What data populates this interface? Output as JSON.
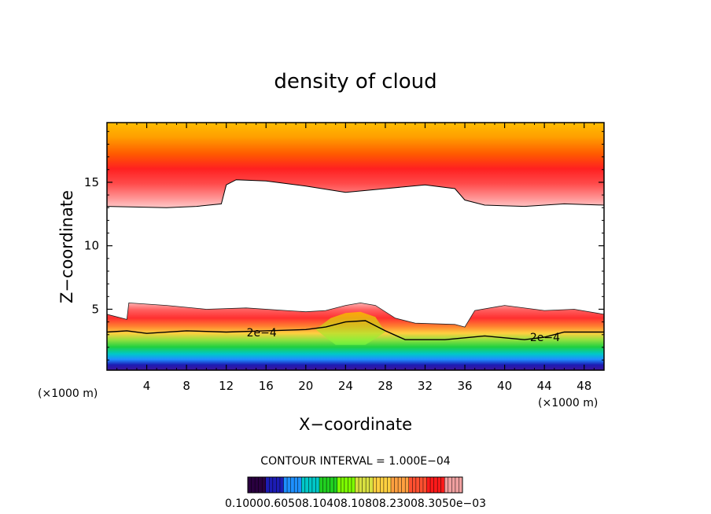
{
  "chart_data": {
    "type": "contour",
    "title": "density of cloud",
    "xlabel": "X−coordinate",
    "ylabel": "Z−coordinate",
    "x_unit_left": "(×1000 m)",
    "x_unit_right": "(×1000 m)",
    "xlim": [
      0,
      50
    ],
    "ylim": [
      0.2,
      19.7
    ],
    "x_ticks": [
      4,
      8,
      12,
      16,
      20,
      24,
      28,
      32,
      36,
      40,
      44,
      48
    ],
    "x_tick_labels": [
      "4",
      "8",
      "12",
      "16",
      "20",
      "24",
      "28",
      "32",
      "36",
      "40",
      "44",
      "48"
    ],
    "y_ticks": [
      5,
      10,
      15
    ],
    "y_tick_labels": [
      "5",
      "10",
      "15"
    ],
    "contour_interval_text": "CONTOUR INTERVAL = 1.000E−04",
    "contour_labels": [
      {
        "text": "2e−4",
        "x": 15.0,
        "z": 3.0
      },
      {
        "text": "2e−4",
        "x": 43.5,
        "z": 2.6
      }
    ],
    "colorbar_labels_text": "0.10000.60508.10408.10808.23008.3050e−03",
    "colorbar_colors": [
      "#2a0040",
      "#1c1cb4",
      "#1e90ff",
      "#00c8c8",
      "#20d020",
      "#7cfc00",
      "#d8e040",
      "#ffd040",
      "#ffa040",
      "#ff5030",
      "#ff1a1a",
      "#f0a0a0"
    ],
    "upper_cloud": {
      "base_profile": [
        [
          0,
          13.1
        ],
        [
          6,
          13.0
        ],
        [
          9,
          13.1
        ],
        [
          11.5,
          13.3
        ],
        [
          12,
          14.8
        ],
        [
          13,
          15.2
        ],
        [
          16,
          15.1
        ],
        [
          20,
          14.7
        ],
        [
          24,
          14.2
        ],
        [
          28,
          14.5
        ],
        [
          32,
          14.8
        ],
        [
          35,
          14.5
        ],
        [
          36,
          13.6
        ],
        [
          38,
          13.2
        ],
        [
          42,
          13.1
        ],
        [
          46,
          13.3
        ],
        [
          50,
          13.2
        ]
      ],
      "top": 19.7
    },
    "lower_cloud": {
      "top_profile": [
        [
          0,
          4.6
        ],
        [
          2,
          4.2
        ],
        [
          2.2,
          5.5
        ],
        [
          6,
          5.3
        ],
        [
          10,
          5.0
        ],
        [
          14,
          5.1
        ],
        [
          18,
          4.9
        ],
        [
          20,
          4.8
        ],
        [
          22,
          4.9
        ],
        [
          24,
          5.3
        ],
        [
          25.5,
          5.5
        ],
        [
          27,
          5.3
        ],
        [
          29,
          4.3
        ],
        [
          31,
          3.9
        ],
        [
          35,
          3.8
        ],
        [
          36,
          3.6
        ],
        [
          37,
          4.9
        ],
        [
          40,
          5.3
        ],
        [
          44,
          4.9
        ],
        [
          47,
          5.0
        ],
        [
          50,
          4.6
        ]
      ],
      "contour_2e4": [
        [
          0,
          3.2
        ],
        [
          2,
          3.3
        ],
        [
          4,
          3.1
        ],
        [
          8,
          3.3
        ],
        [
          12,
          3.2
        ],
        [
          16,
          3.3
        ],
        [
          20,
          3.4
        ],
        [
          22,
          3.6
        ],
        [
          24,
          4.0
        ],
        [
          26,
          4.1
        ],
        [
          28,
          3.3
        ],
        [
          30,
          2.6
        ],
        [
          34,
          2.6
        ],
        [
          38,
          2.9
        ],
        [
          42,
          2.6
        ],
        [
          44,
          2.8
        ],
        [
          46,
          3.2
        ],
        [
          50,
          3.2
        ]
      ],
      "base": 0.2
    }
  }
}
